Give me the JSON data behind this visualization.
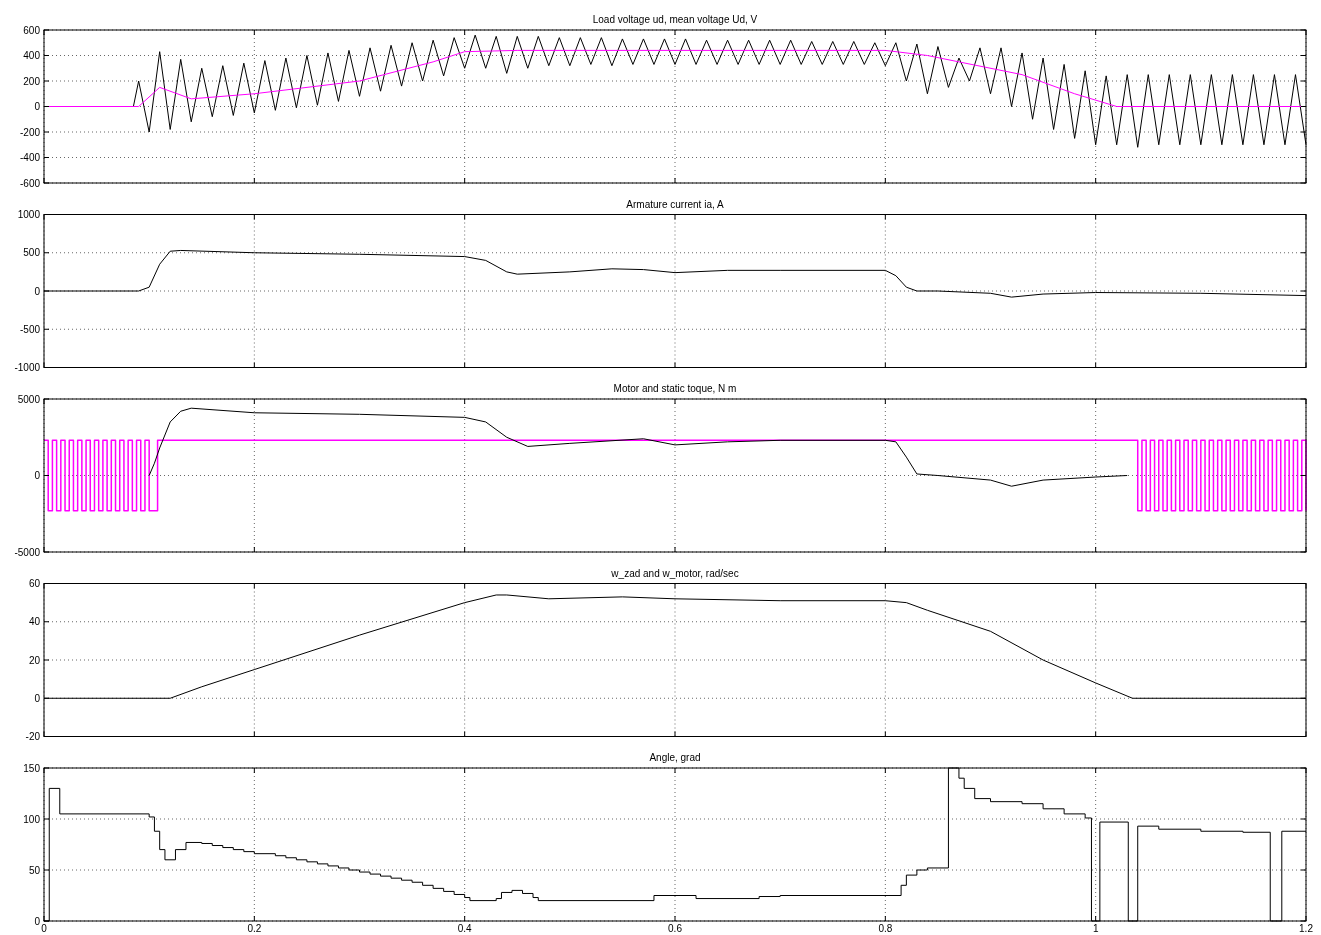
{
  "chart_data": [
    {
      "type": "line",
      "title": "Load voltage ud, mean voltage Ud, V",
      "xlim": [
        0,
        1.2
      ],
      "xticks": [
        0,
        0.2,
        0.4,
        0.6,
        0.8,
        1,
        1.2
      ],
      "ylim": [
        -600,
        600
      ],
      "yticks": [
        -600,
        -400,
        -200,
        0,
        200,
        400,
        600
      ],
      "grid": true,
      "tick_labels": "y",
      "series": [
        {
          "color": "#000000",
          "x": [
            0,
            0.085,
            0.09,
            0.1,
            0.11,
            0.12,
            0.13,
            0.14,
            0.15,
            0.16,
            0.17,
            0.18,
            0.19,
            0.2,
            0.21,
            0.22,
            0.23,
            0.24,
            0.25,
            0.26,
            0.27,
            0.28,
            0.29,
            0.3,
            0.31,
            0.32,
            0.33,
            0.34,
            0.35,
            0.36,
            0.37,
            0.38,
            0.39,
            0.4,
            0.41,
            0.42,
            0.43,
            0.44,
            0.45,
            0.46,
            0.47,
            0.48,
            0.49,
            0.5,
            0.51,
            0.52,
            0.53,
            0.54,
            0.55,
            0.56,
            0.57,
            0.58,
            0.59,
            0.6,
            0.61,
            0.62,
            0.63,
            0.64,
            0.65,
            0.66,
            0.67,
            0.68,
            0.69,
            0.7,
            0.71,
            0.72,
            0.73,
            0.74,
            0.75,
            0.76,
            0.77,
            0.78,
            0.79,
            0.8,
            0.81,
            0.82,
            0.83,
            0.84,
            0.85,
            0.86,
            0.87,
            0.88,
            0.89,
            0.9,
            0.91,
            0.92,
            0.93,
            0.94,
            0.95,
            0.96,
            0.97,
            0.98,
            0.99,
            1,
            1.01,
            1.02,
            1.03,
            1.04,
            1.05,
            1.06,
            1.07,
            1.08,
            1.09,
            1.1,
            1.11,
            1.12,
            1.13,
            1.14,
            1.15,
            1.16,
            1.17,
            1.18,
            1.19,
            1.2
          ],
          "values": [
            0,
            0,
            200,
            -200,
            430,
            -180,
            370,
            -120,
            300,
            -80,
            320,
            -70,
            340,
            -50,
            360,
            -30,
            380,
            -10,
            400,
            10,
            420,
            40,
            440,
            80,
            460,
            120,
            480,
            160,
            500,
            200,
            520,
            240,
            540,
            300,
            560,
            300,
            550,
            260,
            550,
            300,
            550,
            320,
            540,
            320,
            540,
            330,
            540,
            320,
            530,
            330,
            530,
            330,
            530,
            330,
            530,
            330,
            520,
            330,
            520,
            330,
            520,
            330,
            520,
            330,
            520,
            330,
            510,
            330,
            510,
            330,
            510,
            330,
            500,
            320,
            500,
            200,
            490,
            100,
            470,
            150,
            380,
            200,
            460,
            100,
            460,
            0,
            420,
            -100,
            380,
            -180,
            330,
            -250,
            280,
            -300,
            240,
            -300,
            250,
            -320,
            250,
            -300,
            250,
            -300,
            250,
            -300,
            250,
            -300,
            250,
            -300,
            250,
            -300,
            250,
            -300,
            250,
            -300
          ]
        },
        {
          "color": "#ff00ff",
          "x": [
            0,
            0.09,
            0.11,
            0.14,
            0.2,
            0.3,
            0.37,
            0.4,
            0.45,
            0.6,
            0.8,
            0.84,
            0.87,
            0.93,
            0.98,
            1.02,
            1.2
          ],
          "values": [
            0,
            0,
            150,
            60,
            100,
            200,
            350,
            430,
            440,
            440,
            440,
            400,
            350,
            250,
            100,
            0,
            0
          ]
        }
      ]
    },
    {
      "type": "line",
      "title": "Armature current ia, A",
      "xlim": [
        0,
        1.2
      ],
      "xticks": [
        0,
        0.2,
        0.4,
        0.6,
        0.8,
        1,
        1.2
      ],
      "ylim": [
        -1000,
        1000
      ],
      "yticks": [
        -1000,
        -500,
        0,
        500,
        1000
      ],
      "grid": true,
      "tick_labels": "y",
      "series": [
        {
          "color": "#000000",
          "x": [
            0,
            0.09,
            0.1,
            0.11,
            0.12,
            0.13,
            0.2,
            0.3,
            0.4,
            0.42,
            0.44,
            0.45,
            0.5,
            0.54,
            0.57,
            0.6,
            0.65,
            0.7,
            0.8,
            0.81,
            0.82,
            0.83,
            0.85,
            0.9,
            0.92,
            0.95,
            1,
            1.1,
            1.2
          ],
          "values": [
            0,
            0,
            50,
            350,
            520,
            530,
            500,
            480,
            450,
            400,
            250,
            220,
            250,
            290,
            280,
            240,
            270,
            270,
            270,
            200,
            50,
            0,
            0,
            -30,
            -80,
            -40,
            -20,
            -30,
            -60
          ]
        }
      ]
    },
    {
      "type": "line",
      "title": "Motor and static toque, N m",
      "xlim": [
        0,
        1.2
      ],
      "xticks": [
        0,
        0.2,
        0.4,
        0.6,
        0.8,
        1,
        1.2
      ],
      "ylim": [
        -5000,
        5000
      ],
      "yticks": [
        -5000,
        0,
        5000
      ],
      "grid": true,
      "tick_labels": "y",
      "series": [
        {
          "type": "step",
          "color": "#ff00ff",
          "x": [
            0,
            0.004,
            0.008,
            0.012,
            0.016,
            0.02,
            0.024,
            0.028,
            0.032,
            0.036,
            0.04,
            0.044,
            0.048,
            0.052,
            0.056,
            0.06,
            0.064,
            0.068,
            0.072,
            0.076,
            0.08,
            0.084,
            0.088,
            0.092,
            0.096,
            0.1,
            0.108,
            1.04,
            1.044,
            1.048,
            1.052,
            1.056,
            1.06,
            1.064,
            1.068,
            1.072,
            1.076,
            1.08,
            1.084,
            1.088,
            1.092,
            1.096,
            1.1,
            1.104,
            1.108,
            1.112,
            1.116,
            1.12,
            1.124,
            1.128,
            1.132,
            1.136,
            1.14,
            1.144,
            1.148,
            1.152,
            1.156,
            1.16,
            1.164,
            1.168,
            1.172,
            1.176,
            1.18,
            1.184,
            1.188,
            1.192,
            1.196,
            1.2
          ],
          "values": [
            2300,
            -2300,
            2300,
            -2300,
            2300,
            -2300,
            2300,
            -2300,
            2300,
            -2300,
            2300,
            -2300,
            2300,
            -2300,
            2300,
            -2300,
            2300,
            -2300,
            2300,
            -2300,
            2300,
            -2300,
            2300,
            -2300,
            2300,
            -2300,
            2300,
            -2300,
            2300,
            -2300,
            2300,
            -2300,
            2300,
            -2300,
            2300,
            -2300,
            2300,
            -2300,
            2300,
            -2300,
            2300,
            -2300,
            2300,
            -2300,
            2300,
            -2300,
            2300,
            -2300,
            2300,
            -2300,
            2300,
            -2300,
            2300,
            -2300,
            2300,
            -2300,
            2300,
            -2300,
            2300,
            -2300,
            2300,
            -2300,
            2300,
            -2300,
            2300,
            -2300,
            2300,
            -2300
          ]
        },
        {
          "color": "#000000",
          "x": [
            0.1,
            0.105,
            0.11,
            0.12,
            0.13,
            0.14,
            0.2,
            0.3,
            0.4,
            0.42,
            0.44,
            0.46,
            0.5,
            0.57,
            0.6,
            0.65,
            0.7,
            0.8,
            0.81,
            0.82,
            0.83,
            0.85,
            0.9,
            0.92,
            0.95,
            1,
            1.03
          ],
          "values": [
            0,
            800,
            1800,
            3500,
            4200,
            4400,
            4100,
            4000,
            3800,
            3500,
            2500,
            1900,
            2100,
            2400,
            2000,
            2200,
            2300,
            2300,
            2200,
            1200,
            100,
            0,
            -300,
            -700,
            -300,
            -100,
            0
          ]
        }
      ]
    },
    {
      "type": "line",
      "title": "w_zad and w_motor, rad/sec",
      "xlim": [
        0,
        1.2
      ],
      "xticks": [
        0,
        0.2,
        0.4,
        0.6,
        0.8,
        1,
        1.2
      ],
      "ylim": [
        -20,
        60
      ],
      "yticks": [
        -20,
        0,
        20,
        40,
        60
      ],
      "grid": true,
      "tick_labels": "y",
      "series": [
        {
          "color": "#000000",
          "x": [
            0,
            0.12,
            0.15,
            0.2,
            0.3,
            0.4,
            0.43,
            0.44,
            0.48,
            0.55,
            0.6,
            0.7,
            0.8,
            0.82,
            0.84,
            0.9,
            0.95,
            1,
            1.035,
            1.2
          ],
          "values": [
            0,
            0,
            6,
            15,
            33,
            50,
            54,
            54,
            52,
            53,
            52,
            51,
            51,
            50,
            46,
            35,
            20,
            8,
            0,
            0
          ]
        }
      ]
    },
    {
      "type": "step",
      "title": "Angle, grad",
      "xlim": [
        0,
        1.2
      ],
      "xticks": [
        0,
        0.2,
        0.4,
        0.6,
        0.8,
        1,
        1.2
      ],
      "ylim": [
        0,
        150
      ],
      "yticks": [
        0,
        50,
        100,
        150
      ],
      "grid": true,
      "series": [
        {
          "color": "#000000",
          "x": [
            0,
            0.005,
            0.015,
            0.1,
            0.105,
            0.11,
            0.115,
            0.125,
            0.135,
            0.15,
            0.16,
            0.17,
            0.18,
            0.19,
            0.2,
            0.22,
            0.23,
            0.24,
            0.25,
            0.26,
            0.27,
            0.28,
            0.29,
            0.3,
            0.31,
            0.32,
            0.33,
            0.34,
            0.35,
            0.36,
            0.37,
            0.38,
            0.39,
            0.4,
            0.405,
            0.43,
            0.435,
            0.445,
            0.455,
            0.465,
            0.47,
            0.58,
            0.62,
            0.68,
            0.7,
            0.815,
            0.82,
            0.83,
            0.84,
            0.86,
            0.87,
            0.875,
            0.885,
            0.9,
            0.93,
            0.95,
            0.97,
            0.99,
            0.996,
            1.004,
            1.031,
            1.04,
            1.06,
            1.1,
            1.14,
            1.166,
            1.177,
            1.2
          ],
          "values": [
            0,
            130,
            105,
            102,
            88,
            70,
            60,
            70,
            77,
            76,
            74,
            72,
            70,
            68,
            66,
            64,
            62,
            60,
            58,
            56,
            54,
            52,
            50,
            48,
            46,
            44,
            42,
            40,
            38,
            35,
            32,
            29,
            26,
            23,
            20,
            22,
            28,
            30,
            27,
            23,
            20,
            25,
            22,
            24,
            25,
            35,
            45,
            50,
            52,
            150,
            140,
            130,
            120,
            117,
            115,
            110,
            105,
            101,
            0,
            97,
            0,
            93,
            90,
            88,
            87,
            0,
            88,
            88
          ]
        }
      ]
    }
  ]
}
